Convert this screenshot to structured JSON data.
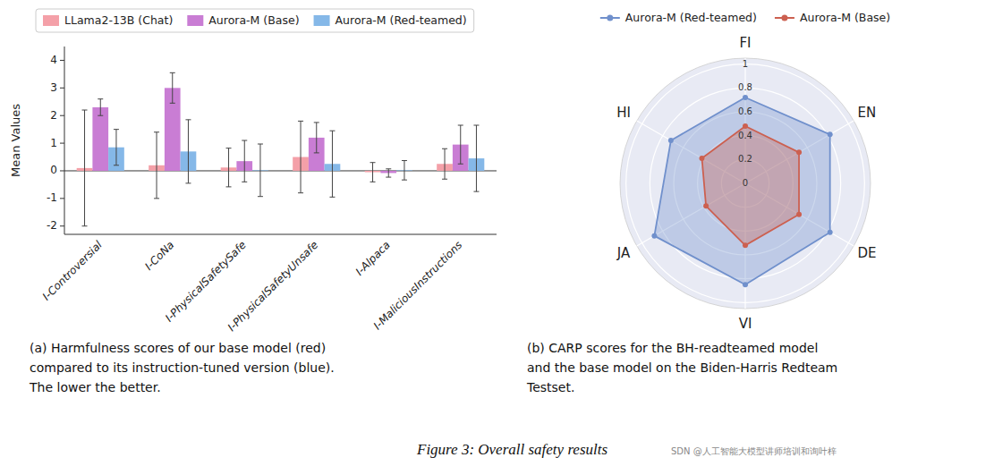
{
  "chart_data": [
    {
      "type": "bar",
      "categories": [
        "I-Controversial",
        "I-CoNa",
        "I-PhysicalSafetySafe",
        "I-PhysicalSafetyUnsafe",
        "I-Alpaca",
        "I-MaliciousInstructions"
      ],
      "series": [
        {
          "name": "LLama2-13B (Chat)",
          "color": "#f4a0a8",
          "values": [
            0.1,
            0.2,
            0.12,
            0.5,
            -0.05,
            0.25
          ],
          "errors": [
            2.1,
            1.2,
            0.7,
            1.3,
            0.35,
            0.55
          ]
        },
        {
          "name": "Aurora-M (Base)",
          "color": "#c97dd4",
          "values": [
            2.3,
            3.0,
            0.35,
            1.2,
            -0.08,
            0.95
          ],
          "errors": [
            0.3,
            0.55,
            0.75,
            0.55,
            0.15,
            0.7
          ]
        },
        {
          "name": "Aurora-M (Red-teamed)",
          "color": "#85b8e8",
          "values": [
            0.85,
            0.7,
            0.02,
            0.25,
            0.02,
            0.45
          ],
          "errors": [
            0.65,
            1.15,
            0.95,
            1.2,
            0.35,
            1.2
          ]
        }
      ],
      "ylabel": "Mean Values",
      "ylim": [
        -2.3,
        4.5
      ],
      "yticks": [
        -2,
        -1,
        0,
        1,
        2,
        3,
        4
      ],
      "grid": false,
      "legend": "top-left",
      "annotations": [
        "(a) Harmfulness scores of our base model (red)\ncompared to its instruction-tuned version (blue).\nThe lower the better."
      ]
    },
    {
      "type": "radar",
      "categories": [
        "FI",
        "EN",
        "DE",
        "VI",
        "JA",
        "HI"
      ],
      "series": [
        {
          "name": "Aurora-M (Red-teamed)",
          "color": "#7090cc",
          "values": [
            0.72,
            0.82,
            0.82,
            0.85,
            0.88,
            0.72
          ]
        },
        {
          "name": "Aurora-M (Base)",
          "color": "#cc6050",
          "values": [
            0.48,
            0.52,
            0.52,
            0.52,
            0.38,
            0.42
          ]
        }
      ],
      "ylim": [
        0,
        1.05
      ],
      "yticks": [
        0,
        0.2,
        0.4,
        0.6,
        0.8,
        1
      ],
      "grid": true,
      "legend": "top",
      "annotations": [
        "(b) CARP scores for the BH-readteamed model\nand the base model on the Biden-Harris Redteam\nTestset."
      ]
    }
  ],
  "annotations": [
    "Figure 3: Overall safety results",
    "SDN @人工智能大模型讲师培训和询叶梓"
  ]
}
